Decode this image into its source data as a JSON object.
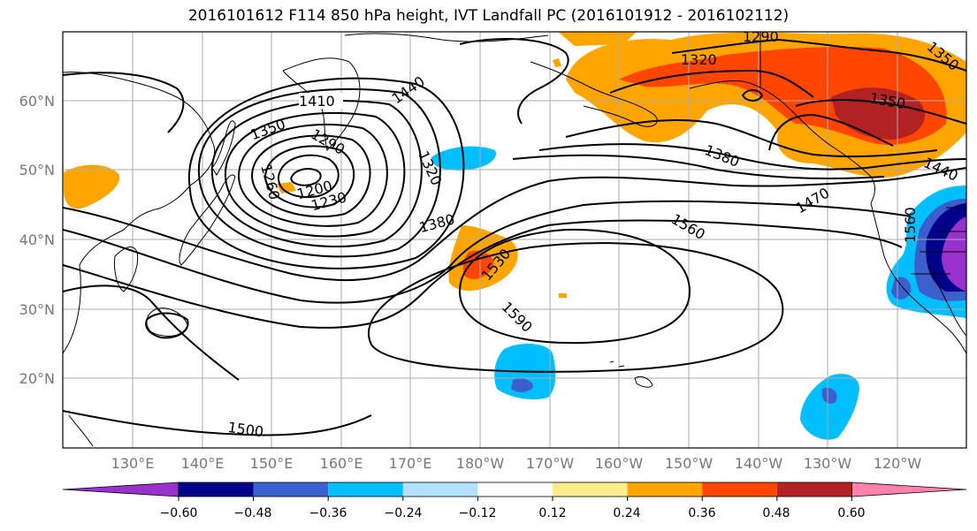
{
  "title": "2016101612 F114 850 hPa height, IVT Landfall PC (2016101912 - 2016102112)",
  "lat_labels": [
    "60°N",
    "50°N",
    "40°N",
    "30°N",
    "20°N"
  ],
  "lon_labels": [
    "130°E",
    "140°E",
    "150°E",
    "160°E",
    "170°E",
    "180°W",
    "170°W",
    "160°W",
    "150°W",
    "140°W",
    "130°W",
    "120°W"
  ],
  "contour_labels": [
    "1410",
    "1440",
    "1350",
    "1290",
    "1260",
    "1200",
    "1230",
    "1320",
    "1380",
    "1530",
    "1590",
    "1560",
    "1500",
    "1380",
    "1470",
    "1320",
    "1290",
    "1350",
    "1350",
    "1440",
    "1560"
  ],
  "colorbar": {
    "tick_labels": [
      "−0.60",
      "−0.48",
      "−0.36",
      "−0.24",
      "−0.12",
      "0.12",
      "0.24",
      "0.36",
      "0.48",
      "0.60"
    ],
    "colors": [
      "#9932cc",
      "#00008b",
      "#3b5fcd",
      "#00bfff",
      "#b0e2ff",
      "#ffffff",
      "#ffec8b",
      "#ffa500",
      "#ff4500",
      "#b22222",
      "#ff82ab"
    ]
  }
}
